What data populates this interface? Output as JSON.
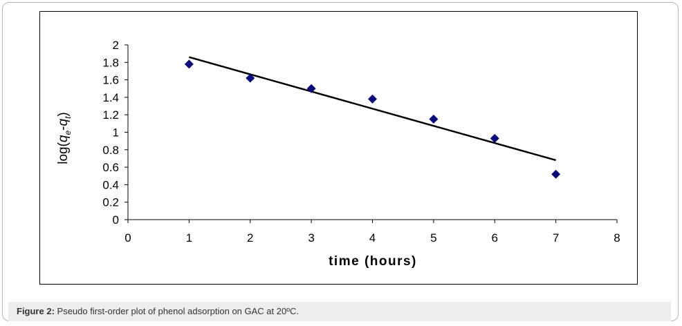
{
  "chart_data": {
    "type": "scatter",
    "x": [
      1,
      2,
      3,
      4,
      5,
      6,
      7
    ],
    "y": [
      1.78,
      1.62,
      1.5,
      1.38,
      1.15,
      0.93,
      0.52
    ],
    "trendline": {
      "x": [
        1,
        7
      ],
      "y": [
        1.86,
        0.68
      ]
    },
    "xlabel": "time (hours)",
    "ylabel_parts": [
      "log(",
      "q",
      "e",
      "-",
      "q",
      "t",
      ")"
    ],
    "xlim": [
      0,
      8
    ],
    "ylim": [
      0,
      2
    ],
    "xticks": [
      "0",
      "1",
      "2",
      "3",
      "4",
      "5",
      "6",
      "7",
      "8"
    ],
    "yticks": [
      "0",
      "0.2",
      "0.4",
      "0.6",
      "0.8",
      "1",
      "1.2",
      "1.4",
      "1.6",
      "1.8",
      "2"
    ],
    "grid": false,
    "marker_color": "#0a0a7a",
    "line_color": "#000000"
  },
  "caption": {
    "label": "Figure 2:",
    "text": " Pseudo first-order plot of phenol adsorption on GAC at 20ºC."
  }
}
